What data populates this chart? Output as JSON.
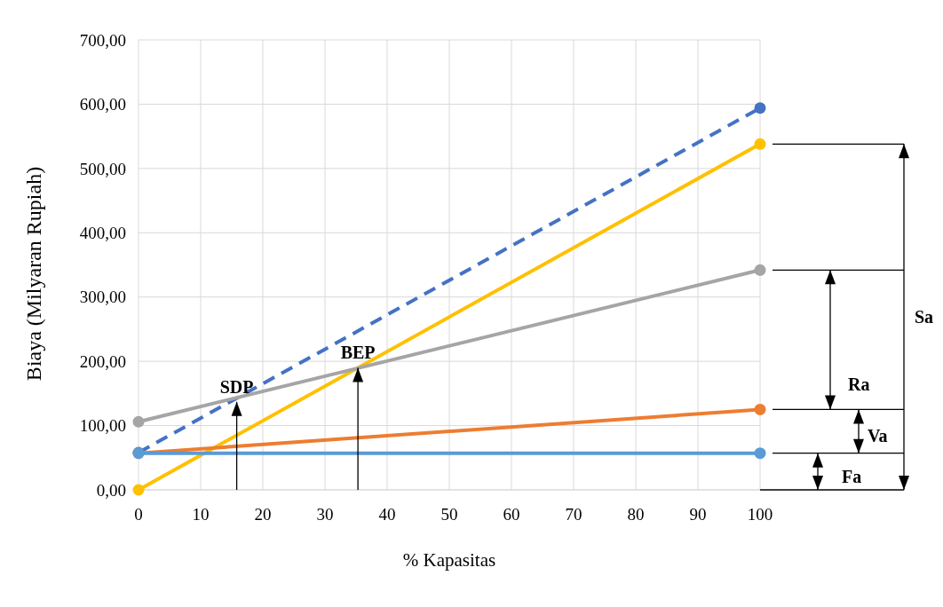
{
  "chart_data": {
    "type": "line",
    "xlabel": "% Kapasitas",
    "ylabel": "Biaya (Milyaran Rupiah)",
    "x": [
      0,
      100
    ],
    "series": [
      {
        "color": "#4472c4",
        "values": [
          58,
          594
        ],
        "line_style": "dashed"
      },
      {
        "color": "#ffc000",
        "values": [
          0,
          538
        ]
      },
      {
        "color": "#a5a5a5",
        "values": [
          106,
          342
        ]
      },
      {
        "color": "#ed7d31",
        "values": [
          57,
          125
        ]
      },
      {
        "color": "#5b9bd5",
        "values": [
          57,
          57
        ]
      }
    ],
    "xlim": [
      0,
      100
    ],
    "xticks": [
      0,
      10,
      20,
      30,
      40,
      50,
      60,
      70,
      80,
      90,
      100
    ],
    "ylim": [
      0,
      700
    ],
    "yticks": [
      {
        "value": 0,
        "label": "0,00"
      },
      {
        "value": 100,
        "label": "100,00"
      },
      {
        "value": 200,
        "label": "200,00"
      },
      {
        "value": 300,
        "label": "300,00"
      },
      {
        "value": 400,
        "label": "400,00"
      },
      {
        "value": 500,
        "label": "500,00"
      },
      {
        "value": 600,
        "label": "600,00"
      },
      {
        "value": 700,
        "label": "700,00"
      }
    ],
    "grid": true,
    "marker": "circle",
    "line_style": "solid",
    "annotations": [
      {
        "text": "SDP",
        "x": 15.8,
        "y": 137
      },
      {
        "text": "BEP",
        "x": 35.3,
        "y": 190
      },
      "Sa",
      "Ra",
      "Va",
      "Fa"
    ]
  }
}
